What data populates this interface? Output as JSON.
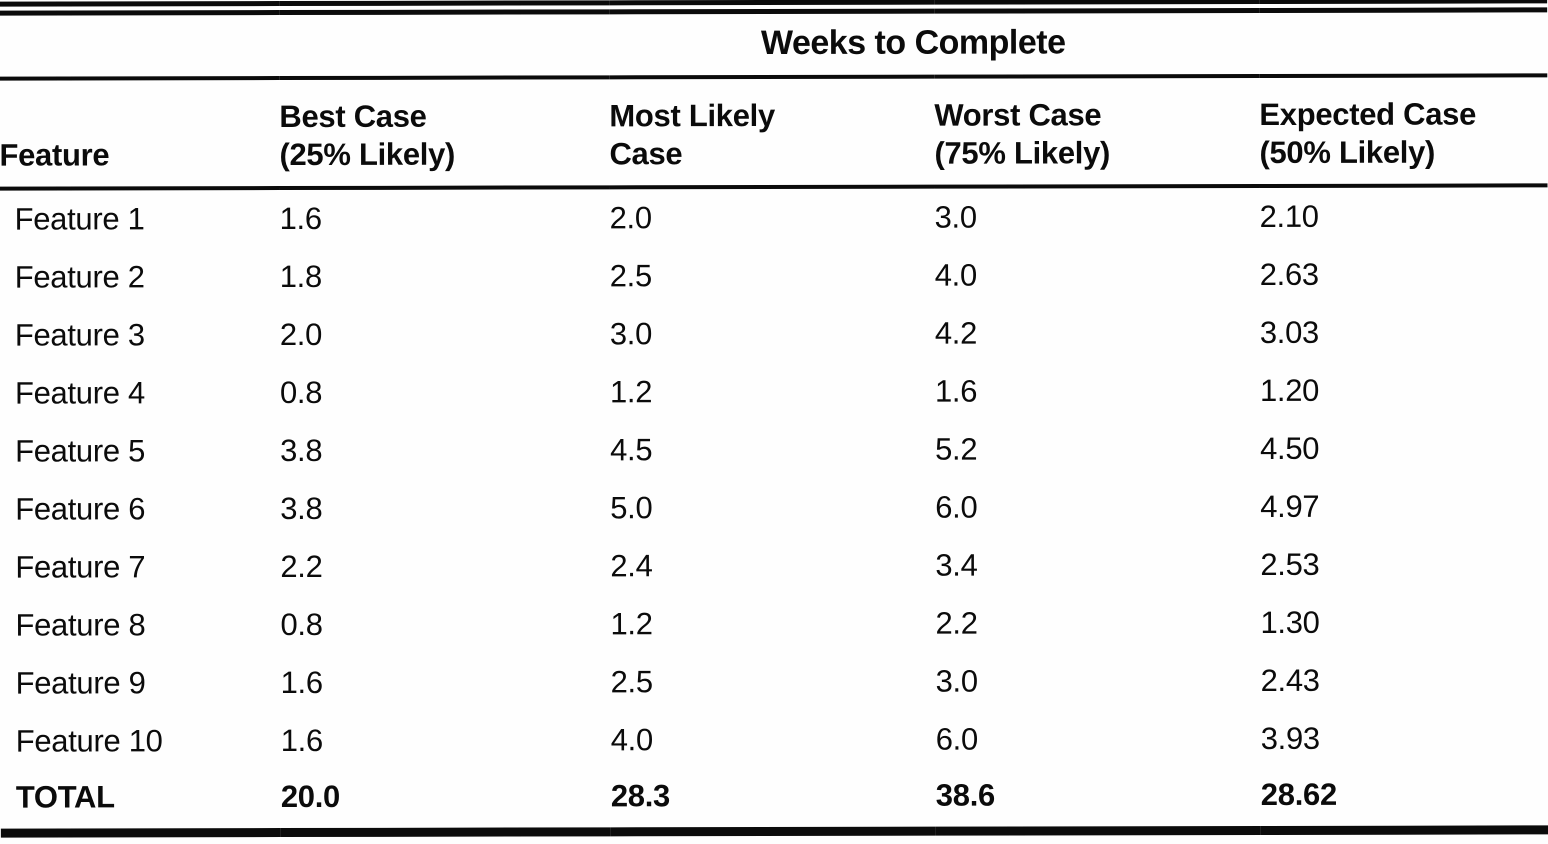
{
  "document": {
    "title": "Weeks to Complete",
    "columns": {
      "feature": "Feature",
      "best_line1": "Best Case",
      "best_line2": "(25% Likely)",
      "likely_line1": "Most Likely",
      "likely_line2": "Case",
      "worst_line1": "Worst Case",
      "worst_line2": "(75% Likely)",
      "expected_line1": "Expected Case",
      "expected_line2": "(50% Likely)"
    },
    "rows": [
      [
        "Feature 1",
        "1.6",
        "2.0",
        "3.0",
        "2.10"
      ],
      [
        "Feature 2",
        "1.8",
        "2.5",
        "4.0",
        "2.63"
      ],
      [
        "Feature 3",
        "2.0",
        "3.0",
        "4.2",
        "3.03"
      ],
      [
        "Feature 4",
        "0.8",
        "1.2",
        "1.6",
        "1.20"
      ],
      [
        "Feature 5",
        "3.8",
        "4.5",
        "5.2",
        "4.50"
      ],
      [
        "Feature 6",
        "3.8",
        "5.0",
        "6.0",
        "4.97"
      ],
      [
        "Feature 7",
        "2.2",
        "2.4",
        "3.4",
        "2.53"
      ],
      [
        "Feature 8",
        "0.8",
        "1.2",
        "2.2",
        "1.30"
      ],
      [
        "Feature 9",
        "1.6",
        "2.5",
        "3.0",
        "2.43"
      ],
      [
        "Feature 10",
        "1.6",
        "4.0",
        "6.0",
        "3.93"
      ]
    ],
    "total": [
      "TOTAL",
      "20.0",
      "28.3",
      "38.6",
      "28.62"
    ],
    "ink_color": "#0b0b0b",
    "paper_color": "#fefefe"
  }
}
